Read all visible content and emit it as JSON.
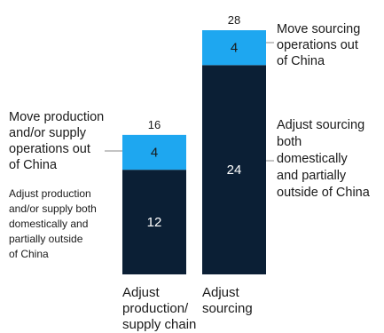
{
  "chart_data": {
    "type": "bar",
    "stacked": true,
    "categories": [
      "Adjust production/ supply chain",
      "Adjust sourcing"
    ],
    "category_label_lines": [
      [
        "Adjust",
        "production/",
        "supply chain"
      ],
      [
        "Adjust",
        "sourcing"
      ]
    ],
    "totals": [
      16,
      28
    ],
    "series": [
      {
        "key": "adjust",
        "color": "#0b1f35",
        "values": [
          12,
          24
        ]
      },
      {
        "key": "move",
        "color": "#1ea7f0",
        "values": [
          4,
          4
        ]
      }
    ],
    "annotations": {
      "cat0_move": [
        "Move production",
        "and/or supply",
        "operations out",
        "of China"
      ],
      "cat0_adjust": [
        "Adjust production",
        "and/or supply both",
        "domestically and",
        "partially outside",
        "of China"
      ],
      "cat1_move": [
        "Move sourcing",
        "operations out",
        "of China"
      ],
      "cat1_adjust": [
        "Adjust sourcing",
        "both",
        "domestically",
        "and partially",
        "outside of China"
      ]
    },
    "title": "",
    "xlabel": "",
    "ylabel": "",
    "ylim": [
      0,
      28
    ],
    "grid": false,
    "legend": "none"
  }
}
